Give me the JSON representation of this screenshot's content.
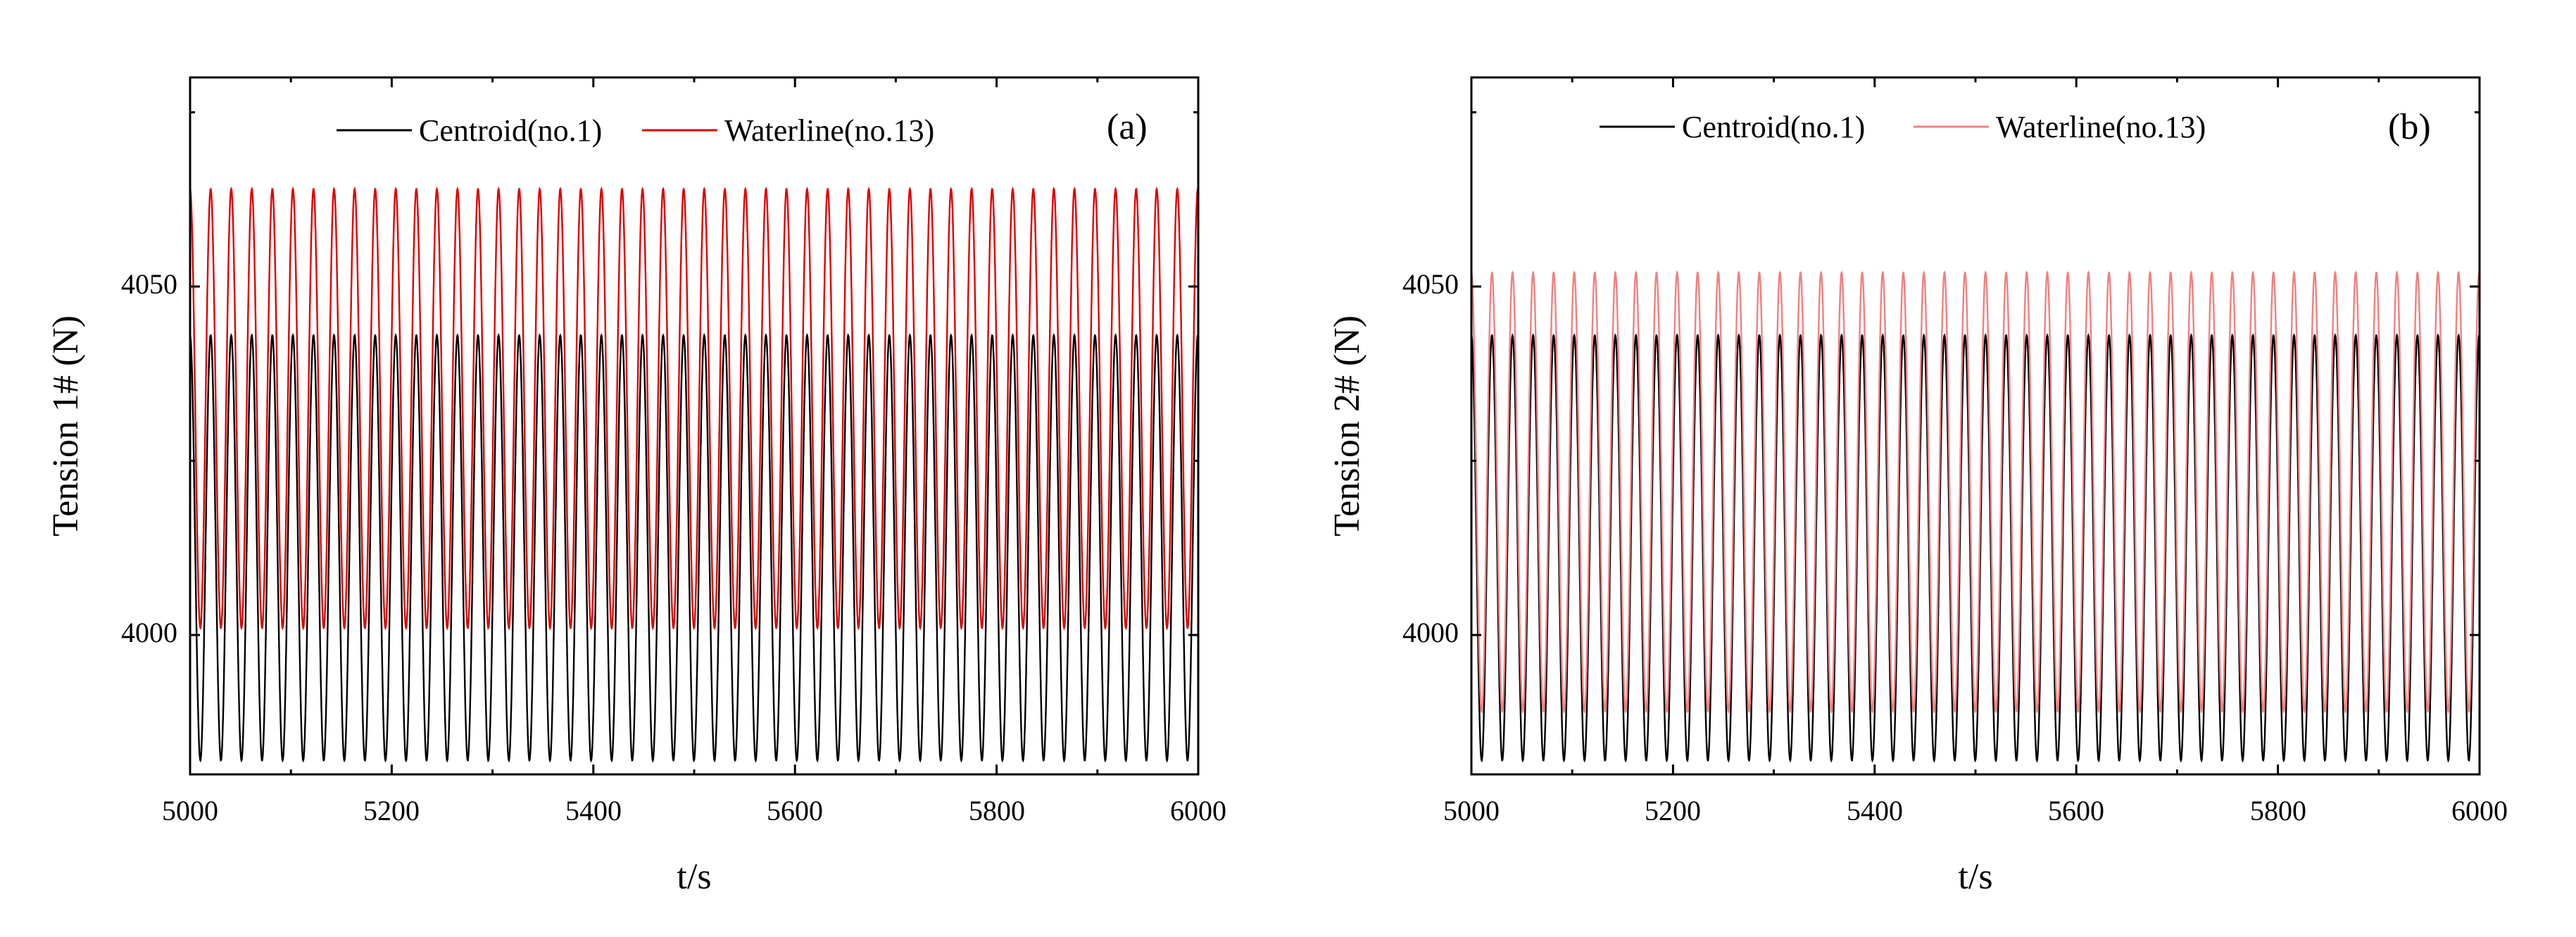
{
  "chart_data": [
    {
      "type": "line",
      "panel_label": "(a)",
      "xlabel": "t/s",
      "ylabel": "Tension 1# (N)",
      "xlim": [
        5000,
        6000
      ],
      "ylim": [
        3980,
        4080
      ],
      "x_ticks": [
        5000,
        5200,
        5400,
        5600,
        5800,
        6000
      ],
      "x_tick_labels": [
        "5000",
        "5200",
        "5400",
        "5600",
        "5800",
        "6000"
      ],
      "y_ticks": [
        4000,
        4050
      ],
      "y_tick_labels": [
        "4000",
        "4050"
      ],
      "legend": {
        "placement": "top-center",
        "entries": [
          "Centroid(no.1)",
          "Waterline(no.13)"
        ]
      },
      "period_s": 20.4,
      "series": [
        {
          "name": "Centroid(no.1)",
          "color": "#000000",
          "min": 3982,
          "max": 4043,
          "start_x": 5000,
          "end_x": 6000
        },
        {
          "name": "Waterline(no.13)",
          "color": "#e00000",
          "min": 4001,
          "max": 4064,
          "start_x": 5000,
          "end_x": 6000
        }
      ]
    },
    {
      "type": "line",
      "panel_label": "(b)",
      "xlabel": "t/s",
      "ylabel": "Tension 2# (N)",
      "xlim": [
        5000,
        6000
      ],
      "ylim": [
        3980,
        4080
      ],
      "x_ticks": [
        5000,
        5200,
        5400,
        5600,
        5800,
        6000
      ],
      "x_tick_labels": [
        "5000",
        "5200",
        "5400",
        "5600",
        "5800",
        "6000"
      ],
      "y_ticks": [
        4000,
        4050
      ],
      "y_tick_labels": [
        "4000",
        "4050"
      ],
      "legend": {
        "placement": "top-center",
        "entries": [
          "Centroid(no.1)",
          "Waterline(no.13)"
        ]
      },
      "period_s": 20.4,
      "series": [
        {
          "name": "Centroid(no.1)",
          "color": "#000000",
          "min": 3982,
          "max": 4043,
          "start_x": 5000,
          "end_x": 6000
        },
        {
          "name": "Waterline(no.13)",
          "color": "#f08080",
          "min": 3989,
          "max": 4052,
          "start_x": 5000,
          "end_x": 6000
        }
      ]
    }
  ]
}
